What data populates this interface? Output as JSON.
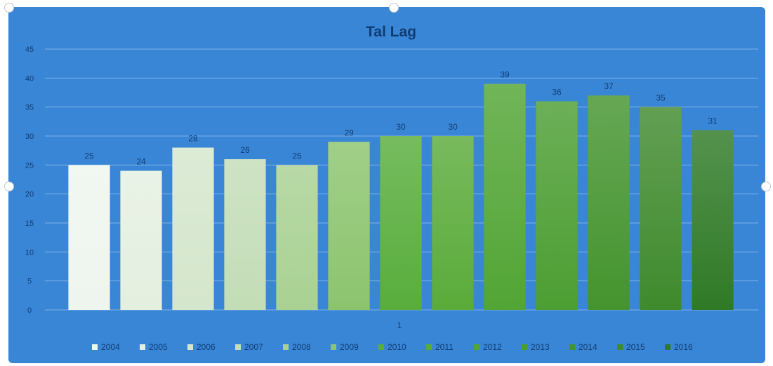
{
  "chart_data": {
    "type": "bar",
    "title": "Tal Lag",
    "x_category_label": "1",
    "ylim": [
      0,
      45
    ],
    "y_ticks": [
      0,
      5,
      10,
      15,
      20,
      25,
      30,
      35,
      40,
      45
    ],
    "grid": true,
    "legend_position": "bottom",
    "series": [
      {
        "name": "2004",
        "value": 25,
        "color": "#eef5ee"
      },
      {
        "name": "2005",
        "value": 24,
        "color": "#e4efe0"
      },
      {
        "name": "2006",
        "value": 28,
        "color": "#d4e6cc"
      },
      {
        "name": "2007",
        "value": 26,
        "color": "#c3ddb7"
      },
      {
        "name": "2008",
        "value": 25,
        "color": "#a9d193"
      },
      {
        "name": "2009",
        "value": 29,
        "color": "#8cc46e"
      },
      {
        "name": "2010",
        "value": 30,
        "color": "#58ad3c"
      },
      {
        "name": "2011",
        "value": 30,
        "color": "#5aab3a"
      },
      {
        "name": "2012",
        "value": 39,
        "color": "#52a535"
      },
      {
        "name": "2013",
        "value": 36,
        "color": "#4c9e32"
      },
      {
        "name": "2014",
        "value": 37,
        "color": "#44942e"
      },
      {
        "name": "2015",
        "value": 35,
        "color": "#3f8a2d"
      },
      {
        "name": "2016",
        "value": 31,
        "color": "#2f7a26"
      }
    ]
  },
  "colors": {
    "background": "#3a86d6",
    "gridline": "#7fb3e8",
    "axis_text": "#0f3d73",
    "title_text": "#0f3d73",
    "label_text": "#0f3d73"
  }
}
